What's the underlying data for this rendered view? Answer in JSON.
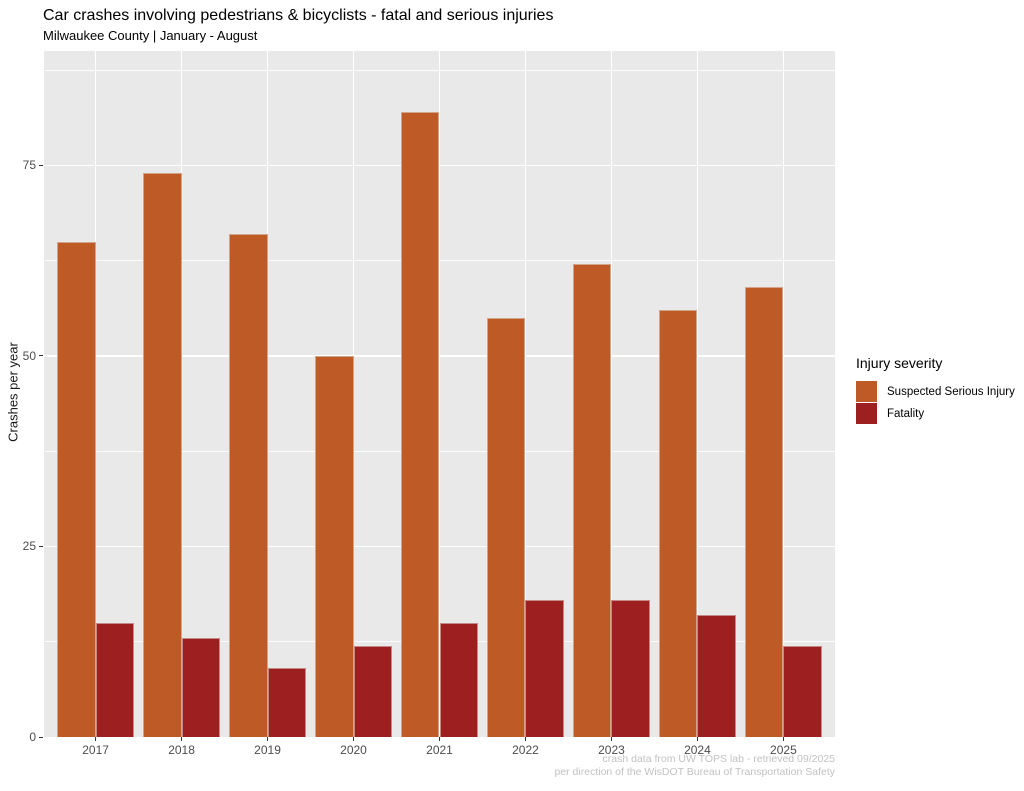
{
  "header": {
    "title": "Car crashes involving pedestrians & bicyclists - fatal and serious injuries",
    "subtitle": "Milwaukee County | January - August"
  },
  "chart_data": {
    "type": "bar",
    "title": "Car crashes involving pedestrians & bicyclists - fatal and serious injuries",
    "subtitle": "Milwaukee County | January - August",
    "categories": [
      "2017",
      "2018",
      "2019",
      "2020",
      "2021",
      "2022",
      "2023",
      "2024",
      "2025"
    ],
    "series": [
      {
        "name": "Suspected Serious Injury",
        "color": "#be5a26",
        "values": [
          65,
          74,
          66,
          50,
          82,
          55,
          62,
          56,
          59
        ]
      },
      {
        "name": "Fatality",
        "color": "#9e1f1f",
        "values": [
          15,
          13,
          9,
          12,
          15,
          18,
          18,
          16,
          12
        ]
      }
    ],
    "xlabel": "",
    "ylabel": "Crashes per year",
    "ylim": [
      0,
      90
    ],
    "yticks": [
      0,
      25,
      50,
      75
    ],
    "yticks_minor": [
      12.5,
      37.5,
      62.5,
      87.5
    ],
    "grid": "on",
    "legend_position": "right",
    "panel_background": "#e9e9e9",
    "gridline_color": "#ffffff"
  },
  "legend": {
    "title": "Injury severity",
    "items": [
      {
        "label": "Suspected Serious Injury",
        "color": "#be5a26"
      },
      {
        "label": "Fatality",
        "color": "#9e1f1f"
      }
    ]
  },
  "caption": {
    "line1": "crash data from UW TOPS lab - retrieved 09/2025",
    "line2": "per direction of the WisDOT Bureau of Transportation Safety"
  }
}
